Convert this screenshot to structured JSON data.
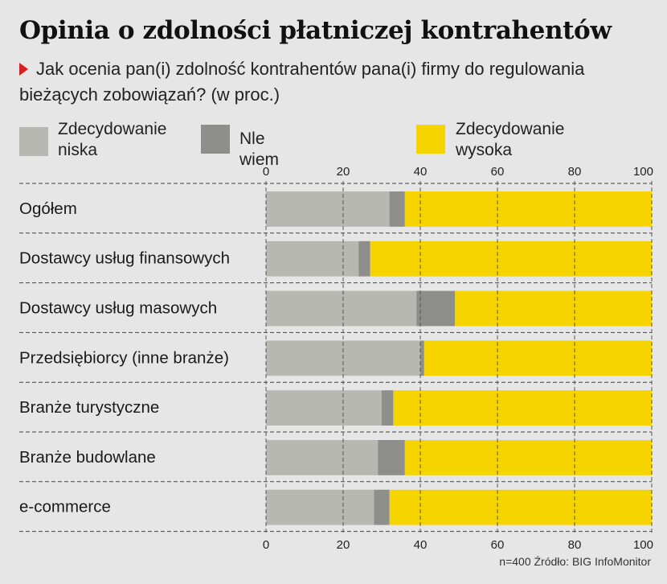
{
  "title": "Opinia o zdolności płatniczej kontrahentów",
  "subtitle": "Jak ocenia pan(i) zdolność kontrahentów pana(i) firmy do regulowania bieżących zobowiązań? (w proc.)",
  "footer": "n=400 Źródło: BIG InfoMonitor",
  "colors": {
    "low": "#b8b8b2",
    "unknown": "#8e8e8a",
    "high": "#f5d400",
    "background": "#e6e6e6",
    "accent_arrow": "#d81e1e"
  },
  "legend": [
    {
      "label": "Zdecydowanie\nniska",
      "color": "#b8b8b2"
    },
    {
      "label": "Nle wiem",
      "color": "#8e8e8a"
    },
    {
      "label": "Zdecydowanie\nwysoka",
      "color": "#f5d400"
    }
  ],
  "chart_data": {
    "type": "bar",
    "orientation": "horizontal",
    "stacked": true,
    "title": "Opinia o zdolności płatniczej kontrahentów",
    "xlim": [
      0,
      100
    ],
    "xticks": [
      0,
      20,
      40,
      60,
      80,
      100
    ],
    "grid": "dashed vertical",
    "legend_position": "top",
    "categories": [
      "Ogółem",
      "Dostawcy usług finansowych",
      "Dostawcy usług masowych",
      "Przedsiębiorcy (inne branże)",
      "Branże turystyczne",
      "Branże budowlane",
      "e-commerce"
    ],
    "series": [
      {
        "name": "Zdecydowanie niska",
        "values": [
          32,
          24,
          39,
          40,
          30,
          29,
          28
        ]
      },
      {
        "name": "Nle wiem",
        "values": [
          4,
          3,
          10,
          1,
          3,
          7,
          4
        ]
      },
      {
        "name": "Zdecydowanie wysoka",
        "values": [
          64,
          73,
          51,
          59,
          67,
          64,
          68
        ]
      }
    ]
  }
}
